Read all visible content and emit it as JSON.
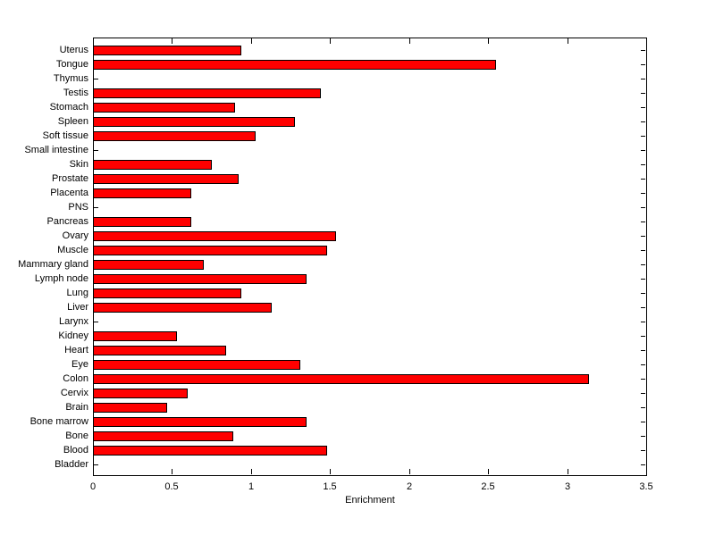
{
  "chart_data": {
    "type": "bar",
    "orientation": "horizontal",
    "title": "",
    "xlabel": "Enrichment",
    "ylabel": "",
    "xlim": [
      0,
      3.5
    ],
    "xticks": [
      0,
      0.5,
      1,
      1.5,
      2,
      2.5,
      3,
      3.5
    ],
    "xtick_labels": [
      "0",
      "0.5",
      "1",
      "1.5",
      "2",
      "2.5",
      "3",
      "3.5"
    ],
    "grid": "off",
    "legend": "none",
    "bar_color": "#FF0000",
    "bar_edge_color": "#000000",
    "background_color": "#FFFFFF",
    "axis_color": "#000000",
    "categories": [
      "Uterus",
      "Tongue",
      "Thymus",
      "Testis",
      "Stomach",
      "Spleen",
      "Soft tissue",
      "Small intestine",
      "Skin",
      "Prostate",
      "Placenta",
      "PNS",
      "Pancreas",
      "Ovary",
      "Muscle",
      "Mammary gland",
      "Lymph node",
      "Lung",
      "Liver",
      "Larynx",
      "Kidney",
      "Heart",
      "Eye",
      "Colon",
      "Cervix",
      "Brain",
      "Bone marrow",
      "Bone",
      "Blood",
      "Bladder"
    ],
    "values": [
      0.94,
      2.55,
      0,
      1.44,
      0.9,
      1.28,
      1.03,
      0,
      0.75,
      0.92,
      0.62,
      0,
      0.62,
      1.54,
      1.48,
      0.7,
      1.35,
      0.94,
      1.13,
      0,
      0.53,
      0.84,
      1.31,
      3.14,
      0.6,
      0.47,
      1.35,
      0.89,
      1.48,
      0
    ]
  }
}
